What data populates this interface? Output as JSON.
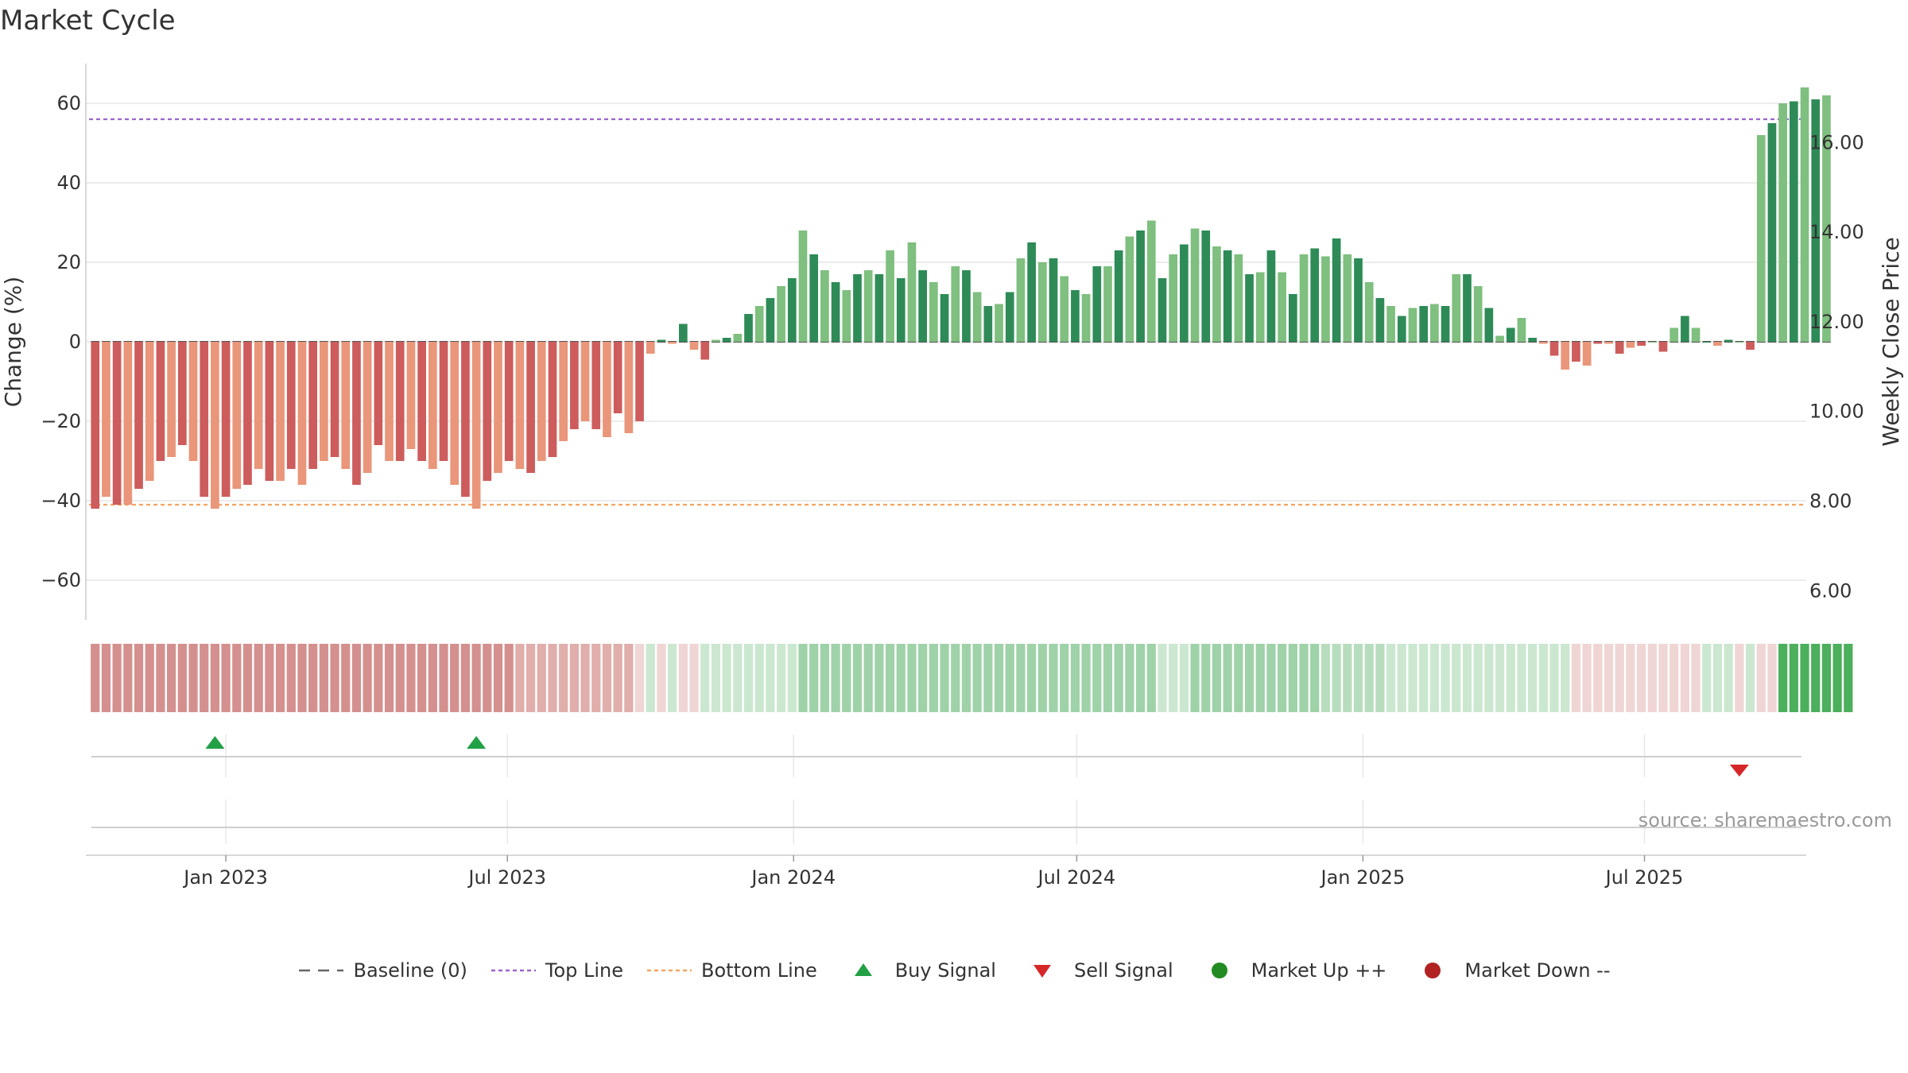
{
  "chart_data": {
    "type": "bar",
    "title": "Market Cycle",
    "ylabel": "Change (%)",
    "y2label": "Weekly Close Price",
    "ylim": [
      -70,
      70
    ],
    "y2lim": [
      5.35,
      17.76
    ],
    "yticks": [
      60,
      40,
      20,
      0,
      -20,
      -40,
      -60
    ],
    "ytick_labels": [
      "60",
      "40",
      "20",
      "0",
      "−20",
      "−40",
      "−60"
    ],
    "y2ticks": [
      16,
      14,
      12,
      10,
      8,
      6
    ],
    "y2tick_labels": [
      "16.00",
      "14.00",
      "12.00",
      "10.00",
      "8.00",
      "6.00"
    ],
    "top_line": 56,
    "bottom_line": -41,
    "grid": true,
    "x_start": "2022-10-03",
    "x_end": "2025-10-13",
    "xticks": [
      {
        "date": "2023-01-01",
        "label": "Jan 2023"
      },
      {
        "date": "2023-07-01",
        "label": "Jul 2023"
      },
      {
        "date": "2024-01-01",
        "label": "Jan 2024"
      },
      {
        "date": "2024-07-01",
        "label": "Jul 2024"
      },
      {
        "date": "2025-01-01",
        "label": "Jan 2025"
      },
      {
        "date": "2025-07-01",
        "label": "Jul 2025"
      }
    ],
    "week_start": "2022-10-09",
    "week_interval_days": 7,
    "change_values": [
      -42,
      -39,
      -41,
      -41,
      -37,
      -35,
      -30,
      -29,
      -26,
      -30,
      -39,
      -42,
      -39,
      -37,
      -36,
      -32,
      -35,
      -35,
      -32,
      -36,
      -32,
      -30,
      -29,
      -32,
      -36,
      -33,
      -26,
      -30,
      -30,
      -27,
      -30,
      -32,
      -30,
      -36,
      -39,
      -42,
      -35,
      -33,
      -30,
      -32,
      -33,
      -30,
      -29,
      -25,
      -22,
      -20,
      -22,
      -24,
      -18,
      -23,
      -20,
      -3,
      0.5,
      -0.5,
      4.5,
      -2,
      -4.5,
      0.5,
      1,
      2,
      7,
      9,
      11,
      14,
      16,
      28,
      22,
      18,
      15,
      13,
      17,
      18,
      17,
      23,
      16,
      25,
      18,
      15,
      12,
      19,
      18,
      12.5,
      9,
      9.5,
      12.5,
      21,
      25,
      20,
      21,
      16.5,
      13,
      12,
      19,
      19,
      23,
      26.5,
      28,
      30.5,
      16,
      22,
      24.5,
      28.5,
      28,
      24,
      23,
      22,
      17,
      17.5,
      23,
      17.5,
      12,
      22,
      23.5,
      21.5,
      26,
      22,
      21,
      15,
      11,
      9,
      6.5,
      8.5,
      9,
      9.5,
      9,
      17,
      17,
      14,
      8.5,
      1.5,
      3.5,
      6,
      1,
      -0.5,
      -3.5,
      -7,
      -5,
      -6,
      -0.5,
      -0.5,
      -3,
      -1.5,
      -1,
      0,
      -2.5,
      3.5,
      6.5,
      3.5,
      0,
      -1,
      0.5,
      0,
      -2,
      52,
      55,
      60,
      60.5,
      64,
      61,
      62
    ],
    "shade_values": [
      -2,
      -2,
      -2,
      -2,
      -2,
      -2,
      -2,
      -2,
      -2,
      -2,
      -2,
      -2,
      -2,
      -2,
      -2,
      -2,
      -2,
      -2,
      -2,
      -2,
      -2,
      -2,
      -2,
      -2,
      -2,
      -2,
      -2,
      -2,
      -2,
      -2,
      -2,
      -2,
      -2,
      -2,
      -2,
      -2,
      -2,
      -2,
      -2,
      -2,
      -2,
      -2,
      -2,
      -2,
      -2,
      -2,
      -2,
      -2,
      -2,
      -2,
      -1,
      1,
      -1,
      1,
      -1,
      -1,
      1,
      1,
      1,
      1,
      1,
      1,
      1,
      1,
      1,
      2,
      2,
      2,
      2,
      2,
      2,
      2,
      2,
      2,
      2,
      2,
      2,
      2,
      2,
      2,
      2,
      2,
      2,
      2,
      2,
      2,
      2,
      2,
      2,
      2,
      2,
      2,
      2,
      2,
      2,
      2,
      2,
      2,
      1,
      1,
      1,
      2,
      2,
      2,
      2,
      2,
      2,
      2,
      2,
      2,
      2,
      2,
      2,
      2,
      2,
      2,
      2,
      2,
      2,
      1,
      1,
      1,
      1,
      1,
      1,
      1,
      1,
      1,
      1,
      1,
      1,
      1,
      1,
      1,
      1,
      1,
      -1,
      -1,
      -1,
      -1,
      -1,
      -1,
      -1,
      -1,
      -1,
      -1,
      -1,
      -1,
      1,
      1,
      1,
      -1,
      1,
      -1,
      -1,
      3,
      3,
      3,
      3,
      3,
      3,
      3
    ],
    "buy_signals": [
      "2022-12-25",
      "2023-06-11"
    ],
    "sell_signals": [
      "2025-08-31"
    ],
    "colors": {
      "up_strong": "#2e8b57",
      "up_light": "#7fbf7f",
      "down_strong": "#cd5c5c",
      "down_light": "#e9967a",
      "top_line": "#9966cc",
      "bottom_line": "#f4a460",
      "buy": "#22a046",
      "sell": "#d62728",
      "market_up": "#228b22",
      "market_down": "#b22222"
    }
  },
  "source": "source: sharemaestro.com",
  "legend": [
    {
      "key": "baseline",
      "label": "Baseline (0)"
    },
    {
      "key": "top",
      "label": "Top Line"
    },
    {
      "key": "bottom",
      "label": "Bottom Line"
    },
    {
      "key": "buy",
      "label": "Buy Signal"
    },
    {
      "key": "sell",
      "label": "Sell Signal"
    },
    {
      "key": "up",
      "label": "Market Up ++"
    },
    {
      "key": "down",
      "label": "Market Down --"
    }
  ]
}
